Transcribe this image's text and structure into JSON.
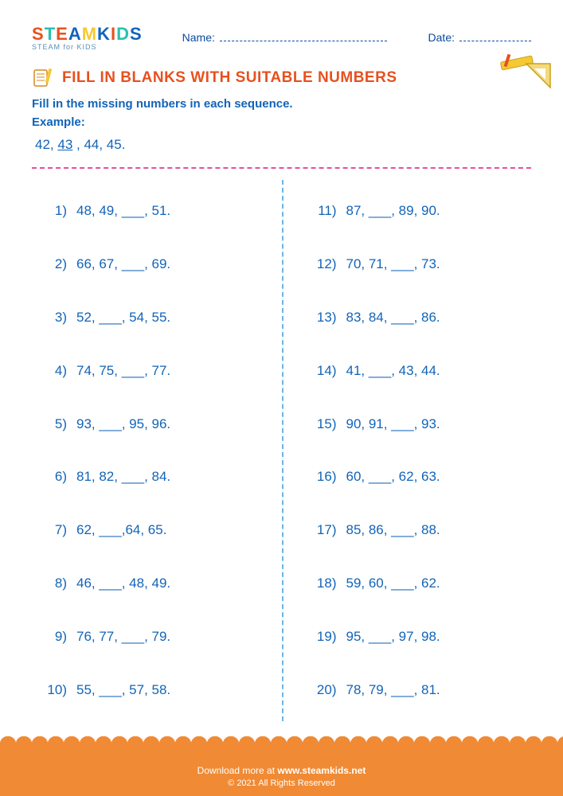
{
  "colors": {
    "primary_blue": "#1264b8",
    "title_orange": "#e8501e",
    "footer_orange": "#f08a34",
    "divider_pink": "#e84f9b",
    "divider_blue": "#6bb5e8",
    "logo_s": "#e8501e",
    "logo_t": "#26c2b0",
    "logo_e": "#e8501e",
    "logo_a": "#1264b8",
    "logo_m": "#f5c932",
    "logo_k": "#1264b8",
    "logo_i": "#e8501e",
    "logo_d": "#26c2b0",
    "logo_s2": "#1264b8"
  },
  "typography": {
    "title_fontsize": 19,
    "body_fontsize": 17,
    "instruction_fontsize": 15,
    "header_field_fontsize": 14,
    "footer_fontsize": 12
  },
  "logo": {
    "letters": [
      "S",
      "T",
      "E",
      "A",
      "M",
      " ",
      "K",
      "I",
      "D",
      "S"
    ],
    "letter_colors": [
      "#e8501e",
      "#26c2b0",
      "#e8501e",
      "#1264b8",
      "#f5c932",
      "#000",
      "#1264b8",
      "#e8501e",
      "#26c2b0",
      "#1264b8"
    ],
    "subtitle": "STEAM for KIDS"
  },
  "header": {
    "name_label": "Name:",
    "date_label": "Date:"
  },
  "title": "FILL IN BLANKS WITH SUITABLE NUMBERS",
  "instruction": "Fill in the missing numbers in each sequence.",
  "example_label": "Example:",
  "example": {
    "prefix": "42, ",
    "answer": "43",
    "suffix": " , 44, 45."
  },
  "problems_left": [
    {
      "n": "1)",
      "seq": "48, 49, ___, 51."
    },
    {
      "n": "2)",
      "seq": "66, 67, ___, 69."
    },
    {
      "n": "3)",
      "seq": "52, ___, 54, 55."
    },
    {
      "n": "4)",
      "seq": "74, 75, ___, 77."
    },
    {
      "n": "5)",
      "seq": "93, ___, 95, 96."
    },
    {
      "n": "6)",
      "seq": "81, 82, ___, 84."
    },
    {
      "n": "7)",
      "seq": "62, ___,64, 65."
    },
    {
      "n": "8)",
      "seq": "46, ___, 48, 49."
    },
    {
      "n": "9)",
      "seq": "76, 77, ___, 79."
    },
    {
      "n": "10)",
      "seq": "55, ___, 57, 58."
    }
  ],
  "problems_right": [
    {
      "n": "11)",
      "seq": "87, ___, 89, 90."
    },
    {
      "n": "12)",
      "seq": "70, 71, ___, 73."
    },
    {
      "n": "13)",
      "seq": "83, 84, ___, 86."
    },
    {
      "n": "14)",
      "seq": "41, ___, 43, 44."
    },
    {
      "n": "15)",
      "seq": "90, 91, ___, 93."
    },
    {
      "n": "16)",
      "seq": "60, ___, 62, 63."
    },
    {
      "n": "17)",
      "seq": "85, 86, ___, 88."
    },
    {
      "n": "18)",
      "seq": "59, 60, ___, 62."
    },
    {
      "n": "19)",
      "seq": "95, ___, 97, 98."
    },
    {
      "n": "20)",
      "seq": "78, 79, ___, 81."
    }
  ],
  "footer": {
    "download_prefix": "Download more at ",
    "url": "www.steamkids.net",
    "copyright": "© 2021 All Rights Reserved"
  }
}
